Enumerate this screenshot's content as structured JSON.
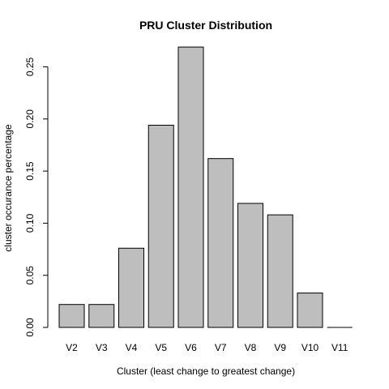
{
  "chart_data": {
    "type": "bar",
    "title": "PRU Cluster Distribution",
    "xlabel": "Cluster (least change to greatest change)",
    "ylabel": "cluster occurance percentage",
    "categories": [
      "V2",
      "V3",
      "V4",
      "V5",
      "V6",
      "V7",
      "V8",
      "V9",
      "V10",
      "V11"
    ],
    "values": [
      0.022,
      0.022,
      0.076,
      0.194,
      0.269,
      0.162,
      0.119,
      0.108,
      0.033,
      0.0
    ],
    "ylim": [
      0,
      0.27
    ],
    "yticks": [
      0.0,
      0.05,
      0.1,
      0.15,
      0.2,
      0.25
    ],
    "ytick_labels": [
      "0.00",
      "0.05",
      "0.10",
      "0.15",
      "0.20",
      "0.25"
    ],
    "grid": false,
    "colors": {
      "bar_fill": "#bebebe",
      "bar_stroke": "#000000"
    }
  }
}
